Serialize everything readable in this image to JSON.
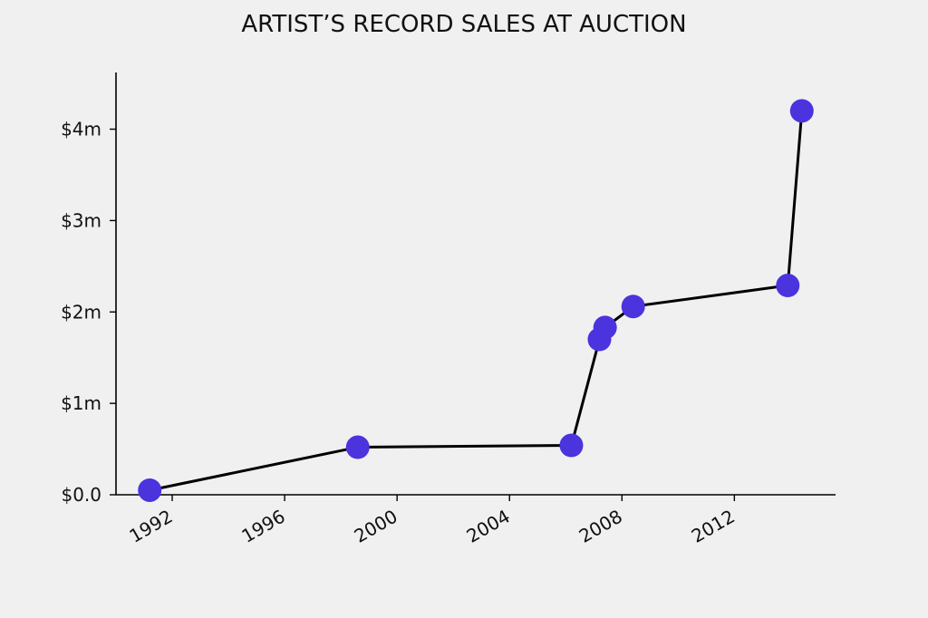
{
  "chart_data": {
    "type": "line",
    "title": "ARTIST’S RECORD SALES AT AUCTION",
    "xlabel": "",
    "ylabel": "",
    "xlim": [
      1990.0,
      2015.6
    ],
    "ylim": [
      0,
      4.62
    ],
    "x_ticks": [
      1992,
      1996,
      2000,
      2004,
      2008,
      2012
    ],
    "x_tick_labels": [
      "1992",
      "1996",
      "2000",
      "2004",
      "2008",
      "2012"
    ],
    "y_ticks": [
      0,
      1,
      2,
      3,
      4
    ],
    "y_tick_labels": [
      "$0.0",
      "$1m",
      "$2m",
      "$3m",
      "$4m"
    ],
    "grid": false,
    "series": [
      {
        "x": [
          1991.2,
          1998.6,
          2006.2,
          2007.2,
          2007.4,
          2008.4,
          2013.9,
          2014.4
        ],
        "y": [
          0.05,
          0.52,
          0.54,
          1.7,
          1.83,
          2.06,
          2.29,
          4.2
        ],
        "unit": "million USD"
      }
    ],
    "colors": {
      "line": "#000000",
      "marker": "#4b33dd",
      "background": "#f0f0f0"
    }
  }
}
